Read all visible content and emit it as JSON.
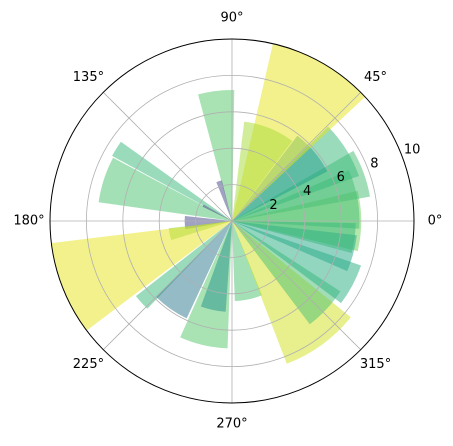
{
  "chart_data": {
    "type": "bar",
    "projection": "polar",
    "title": "",
    "grid": true,
    "angular_ticks_deg": [
      0,
      45,
      90,
      135,
      180,
      225,
      270,
      315
    ],
    "angular_tick_labels": [
      "0°",
      "45°",
      "90°",
      "135°",
      "180°",
      "225°",
      "270°",
      "315°"
    ],
    "radial_ticks": [
      2,
      4,
      6,
      8,
      10
    ],
    "radial_tick_labels": [
      "2",
      "4",
      "6",
      "8",
      "10"
    ],
    "rlim": [
      0,
      10
    ],
    "colormap": "viridis",
    "bars": [
      {
        "theta_deg": 0,
        "width_deg": 27,
        "r": 7.1,
        "color": "#6ccd5a"
      },
      {
        "theta_deg": 10,
        "width_deg": 27,
        "r": 7.0,
        "color": "#43be71"
      },
      {
        "theta_deg": 20,
        "width_deg": 20,
        "r": 7.7,
        "color": "#43be71"
      },
      {
        "theta_deg": 32,
        "width_deg": 25,
        "r": 7.4,
        "color": "#35b779"
      },
      {
        "theta_deg": 40,
        "width_deg": 25,
        "r": 5.9,
        "color": "#1f9e89"
      },
      {
        "theta_deg": 60,
        "width_deg": 34,
        "r": 10.0,
        "color": "#e8e419"
      },
      {
        "theta_deg": 68,
        "width_deg": 30,
        "r": 5.5,
        "color": "#a5db36"
      },
      {
        "theta_deg": 97,
        "width_deg": 16,
        "r": 7.2,
        "color": "#54c568"
      },
      {
        "theta_deg": 108,
        "width_deg": 8,
        "r": 2.3,
        "color": "#414487"
      },
      {
        "theta_deg": 148,
        "width_deg": 7,
        "r": 7.5,
        "color": "#35b779"
      },
      {
        "theta_deg": 162,
        "width_deg": 20,
        "r": 7.4,
        "color": "#4ac16d"
      },
      {
        "theta_deg": 152,
        "width_deg": 4,
        "r": 1.8,
        "color": "#443a83"
      },
      {
        "theta_deg": 182,
        "width_deg": 16,
        "r": 2.6,
        "color": "#414487"
      },
      {
        "theta_deg": 192,
        "width_deg": 11,
        "r": 3.5,
        "color": "#7ad151"
      },
      {
        "theta_deg": 202,
        "width_deg": 30,
        "r": 10.0,
        "color": "#e8e419"
      },
      {
        "theta_deg": 222,
        "width_deg": 8,
        "r": 6.7,
        "color": "#35b779"
      },
      {
        "theta_deg": 235,
        "width_deg": 20,
        "r": 5.9,
        "color": "#2a788e"
      },
      {
        "theta_deg": 257,
        "width_deg": 22,
        "r": 7.0,
        "color": "#54c568"
      },
      {
        "theta_deg": 258,
        "width_deg": 16,
        "r": 5.0,
        "color": "#21918c"
      },
      {
        "theta_deg": 282,
        "width_deg": 20,
        "r": 4.4,
        "color": "#4ac16d"
      },
      {
        "theta_deg": 306,
        "width_deg": 30,
        "r": 8.4,
        "color": "#d2e21b"
      },
      {
        "theta_deg": 317,
        "width_deg": 20,
        "r": 7.1,
        "color": "#43be71"
      },
      {
        "theta_deg": 332,
        "width_deg": 18,
        "r": 7.5,
        "color": "#27ad81"
      },
      {
        "theta_deg": 345,
        "width_deg": 17,
        "r": 6.9,
        "color": "#22a785"
      },
      {
        "theta_deg": 352,
        "width_deg": 14,
        "r": 6.8,
        "color": "#35b779"
      }
    ]
  }
}
